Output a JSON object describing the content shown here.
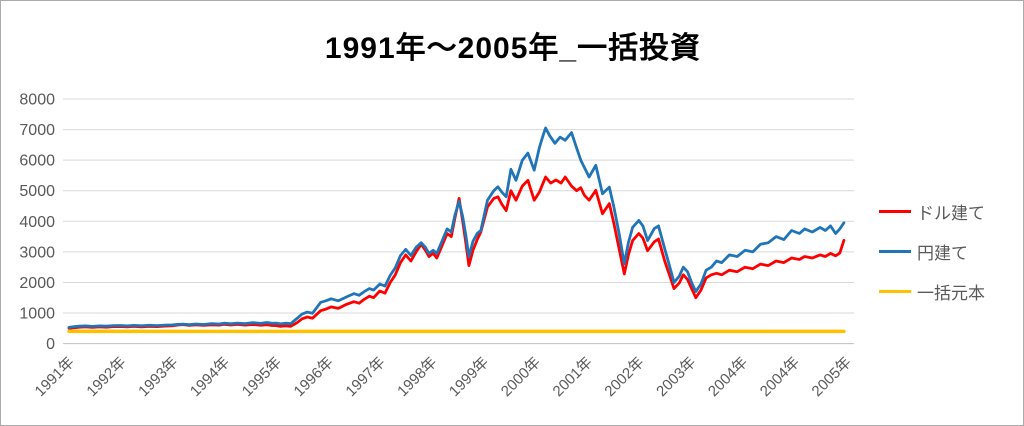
{
  "chart_data": {
    "type": "line",
    "title": "1991年～2005年_一括投資",
    "xlabel": "",
    "ylabel": "",
    "ylim": [
      0,
      8000
    ],
    "y_ticks": [
      0,
      1000,
      2000,
      3000,
      4000,
      5000,
      6000,
      7000,
      8000
    ],
    "x_tick_labels": [
      "1991年",
      "1992年",
      "1993年",
      "1994年",
      "1995年",
      "1996年",
      "1997年",
      "1998年",
      "1999年",
      "2000年",
      "2001年",
      "2002年",
      "2003年",
      "2004年",
      "2004年",
      "2005年"
    ],
    "grid": true,
    "gridline_color": "#d9d9d9",
    "axis_line_color": "#bfbfbf",
    "tick_label_color": "#595959",
    "legend_position": "right",
    "series": [
      {
        "name": "ドル建て",
        "color": "#FF0000",
        "points": [
          [
            0,
            500
          ],
          [
            0.1,
            520
          ],
          [
            0.2,
            535
          ],
          [
            0.32,
            545
          ],
          [
            0.45,
            530
          ],
          [
            0.6,
            548
          ],
          [
            0.72,
            538
          ],
          [
            0.85,
            555
          ],
          [
            1.0,
            560
          ],
          [
            1.12,
            545
          ],
          [
            1.25,
            562
          ],
          [
            1.4,
            550
          ],
          [
            1.55,
            566
          ],
          [
            1.7,
            556
          ],
          [
            1.85,
            572
          ],
          [
            2.0,
            582
          ],
          [
            2.1,
            608
          ],
          [
            2.2,
            622
          ],
          [
            2.32,
            596
          ],
          [
            2.45,
            612
          ],
          [
            2.6,
            596
          ],
          [
            2.75,
            616
          ],
          [
            2.9,
            606
          ],
          [
            3.0,
            630
          ],
          [
            3.12,
            608
          ],
          [
            3.25,
            630
          ],
          [
            3.4,
            606
          ],
          [
            3.55,
            626
          ],
          [
            3.7,
            602
          ],
          [
            3.82,
            618
          ],
          [
            3.92,
            592
          ],
          [
            4.0,
            590
          ],
          [
            4.08,
            562
          ],
          [
            4.18,
            582
          ],
          [
            4.28,
            566
          ],
          [
            4.4,
            680
          ],
          [
            4.5,
            810
          ],
          [
            4.6,
            870
          ],
          [
            4.7,
            830
          ],
          [
            4.86,
            1075
          ],
          [
            4.96,
            1130
          ],
          [
            5.06,
            1200
          ],
          [
            5.2,
            1150
          ],
          [
            5.35,
            1280
          ],
          [
            5.5,
            1370
          ],
          [
            5.6,
            1320
          ],
          [
            5.7,
            1450
          ],
          [
            5.8,
            1550
          ],
          [
            5.88,
            1500
          ],
          [
            6.0,
            1720
          ],
          [
            6.1,
            1650
          ],
          [
            6.2,
            2000
          ],
          [
            6.3,
            2250
          ],
          [
            6.4,
            2650
          ],
          [
            6.5,
            2900
          ],
          [
            6.6,
            2700
          ],
          [
            6.7,
            3000
          ],
          [
            6.8,
            3250
          ],
          [
            6.88,
            3050
          ],
          [
            6.95,
            2850
          ],
          [
            7.03,
            2950
          ],
          [
            7.1,
            2800
          ],
          [
            7.2,
            3200
          ],
          [
            7.3,
            3600
          ],
          [
            7.38,
            3500
          ],
          [
            7.45,
            4100
          ],
          [
            7.53,
            4750
          ],
          [
            7.6,
            4000
          ],
          [
            7.66,
            3300
          ],
          [
            7.72,
            2550
          ],
          [
            7.8,
            3050
          ],
          [
            7.88,
            3400
          ],
          [
            7.95,
            3650
          ],
          [
            8.08,
            4470
          ],
          [
            8.2,
            4750
          ],
          [
            8.28,
            4800
          ],
          [
            8.36,
            4550
          ],
          [
            8.44,
            4350
          ],
          [
            8.53,
            5000
          ],
          [
            8.63,
            4690
          ],
          [
            8.75,
            5150
          ],
          [
            8.86,
            5340
          ],
          [
            8.98,
            4690
          ],
          [
            9.08,
            4950
          ],
          [
            9.2,
            5450
          ],
          [
            9.3,
            5250
          ],
          [
            9.4,
            5350
          ],
          [
            9.5,
            5250
          ],
          [
            9.58,
            5450
          ],
          [
            9.7,
            5150
          ],
          [
            9.8,
            5000
          ],
          [
            9.88,
            5100
          ],
          [
            9.95,
            4850
          ],
          [
            10.04,
            4690
          ],
          [
            10.17,
            5010
          ],
          [
            10.3,
            4250
          ],
          [
            10.43,
            4580
          ],
          [
            10.52,
            3930
          ],
          [
            10.62,
            3100
          ],
          [
            10.72,
            2280
          ],
          [
            10.8,
            2900
          ],
          [
            10.88,
            3370
          ],
          [
            11.0,
            3600
          ],
          [
            11.08,
            3450
          ],
          [
            11.17,
            3040
          ],
          [
            11.3,
            3330
          ],
          [
            11.38,
            3420
          ],
          [
            11.5,
            2700
          ],
          [
            11.6,
            2200
          ],
          [
            11.68,
            1800
          ],
          [
            11.78,
            1980
          ],
          [
            11.86,
            2250
          ],
          [
            11.94,
            2100
          ],
          [
            12.02,
            1800
          ],
          [
            12.1,
            1500
          ],
          [
            12.2,
            1750
          ],
          [
            12.3,
            2150
          ],
          [
            12.4,
            2250
          ],
          [
            12.5,
            2300
          ],
          [
            12.6,
            2250
          ],
          [
            12.75,
            2400
          ],
          [
            12.9,
            2350
          ],
          [
            13.05,
            2500
          ],
          [
            13.2,
            2450
          ],
          [
            13.35,
            2600
          ],
          [
            13.5,
            2550
          ],
          [
            13.65,
            2700
          ],
          [
            13.8,
            2650
          ],
          [
            13.95,
            2800
          ],
          [
            14.1,
            2750
          ],
          [
            14.2,
            2850
          ],
          [
            14.35,
            2800
          ],
          [
            14.5,
            2900
          ],
          [
            14.6,
            2850
          ],
          [
            14.7,
            2950
          ],
          [
            14.8,
            2870
          ],
          [
            14.88,
            2960
          ],
          [
            14.96,
            3380
          ]
        ]
      },
      {
        "name": "円建て",
        "color": "#2074B8",
        "points": [
          [
            0,
            530
          ],
          [
            0.1,
            555
          ],
          [
            0.2,
            568
          ],
          [
            0.32,
            578
          ],
          [
            0.45,
            562
          ],
          [
            0.6,
            580
          ],
          [
            0.72,
            570
          ],
          [
            0.85,
            588
          ],
          [
            1.0,
            592
          ],
          [
            1.12,
            578
          ],
          [
            1.25,
            594
          ],
          [
            1.4,
            582
          ],
          [
            1.55,
            598
          ],
          [
            1.7,
            588
          ],
          [
            1.85,
            604
          ],
          [
            2.0,
            612
          ],
          [
            2.1,
            628
          ],
          [
            2.2,
            638
          ],
          [
            2.32,
            618
          ],
          [
            2.45,
            642
          ],
          [
            2.6,
            626
          ],
          [
            2.75,
            652
          ],
          [
            2.9,
            642
          ],
          [
            3.0,
            668
          ],
          [
            3.12,
            646
          ],
          [
            3.25,
            672
          ],
          [
            3.4,
            650
          ],
          [
            3.55,
            685
          ],
          [
            3.7,
            660
          ],
          [
            3.82,
            690
          ],
          [
            3.92,
            665
          ],
          [
            4.0,
            672
          ],
          [
            4.08,
            645
          ],
          [
            4.18,
            668
          ],
          [
            4.28,
            650
          ],
          [
            4.4,
            820
          ],
          [
            4.5,
            965
          ],
          [
            4.6,
            1030
          ],
          [
            4.7,
            990
          ],
          [
            4.86,
            1350
          ],
          [
            4.96,
            1400
          ],
          [
            5.06,
            1465
          ],
          [
            5.2,
            1400
          ],
          [
            5.35,
            1520
          ],
          [
            5.5,
            1635
          ],
          [
            5.6,
            1580
          ],
          [
            5.7,
            1700
          ],
          [
            5.8,
            1800
          ],
          [
            5.88,
            1750
          ],
          [
            6.0,
            1950
          ],
          [
            6.1,
            1880
          ],
          [
            6.2,
            2230
          ],
          [
            6.3,
            2480
          ],
          [
            6.4,
            2880
          ],
          [
            6.5,
            3080
          ],
          [
            6.6,
            2880
          ],
          [
            6.7,
            3150
          ],
          [
            6.8,
            3300
          ],
          [
            6.88,
            3150
          ],
          [
            6.95,
            2950
          ],
          [
            7.03,
            3050
          ],
          [
            7.1,
            2950
          ],
          [
            7.2,
            3350
          ],
          [
            7.3,
            3750
          ],
          [
            7.38,
            3650
          ],
          [
            7.45,
            4200
          ],
          [
            7.53,
            4650
          ],
          [
            7.6,
            4150
          ],
          [
            7.66,
            3550
          ],
          [
            7.72,
            2850
          ],
          [
            7.8,
            3350
          ],
          [
            7.88,
            3600
          ],
          [
            7.95,
            3700
          ],
          [
            8.08,
            4690
          ],
          [
            8.2,
            5000
          ],
          [
            8.28,
            5130
          ],
          [
            8.36,
            4950
          ],
          [
            8.44,
            4800
          ],
          [
            8.53,
            5700
          ],
          [
            8.63,
            5340
          ],
          [
            8.75,
            6000
          ],
          [
            8.86,
            6230
          ],
          [
            8.98,
            5670
          ],
          [
            9.08,
            6400
          ],
          [
            9.15,
            6800
          ],
          [
            9.2,
            7050
          ],
          [
            9.28,
            6800
          ],
          [
            9.38,
            6550
          ],
          [
            9.48,
            6750
          ],
          [
            9.58,
            6650
          ],
          [
            9.7,
            6900
          ],
          [
            9.8,
            6400
          ],
          [
            9.88,
            6000
          ],
          [
            10.04,
            5450
          ],
          [
            10.17,
            5830
          ],
          [
            10.3,
            4900
          ],
          [
            10.43,
            5120
          ],
          [
            10.52,
            4460
          ],
          [
            10.62,
            3600
          ],
          [
            10.72,
            2610
          ],
          [
            10.8,
            3300
          ],
          [
            10.88,
            3800
          ],
          [
            11.0,
            4030
          ],
          [
            11.08,
            3850
          ],
          [
            11.17,
            3370
          ],
          [
            11.3,
            3760
          ],
          [
            11.38,
            3850
          ],
          [
            11.5,
            3100
          ],
          [
            11.6,
            2500
          ],
          [
            11.68,
            2000
          ],
          [
            11.78,
            2200
          ],
          [
            11.86,
            2500
          ],
          [
            11.94,
            2350
          ],
          [
            12.02,
            2000
          ],
          [
            12.1,
            1700
          ],
          [
            12.2,
            1950
          ],
          [
            12.3,
            2400
          ],
          [
            12.4,
            2500
          ],
          [
            12.5,
            2700
          ],
          [
            12.6,
            2650
          ],
          [
            12.75,
            2900
          ],
          [
            12.9,
            2850
          ],
          [
            13.05,
            3050
          ],
          [
            13.2,
            3000
          ],
          [
            13.35,
            3250
          ],
          [
            13.5,
            3300
          ],
          [
            13.65,
            3500
          ],
          [
            13.8,
            3400
          ],
          [
            13.95,
            3700
          ],
          [
            14.1,
            3600
          ],
          [
            14.2,
            3750
          ],
          [
            14.35,
            3650
          ],
          [
            14.5,
            3800
          ],
          [
            14.6,
            3700
          ],
          [
            14.7,
            3850
          ],
          [
            14.8,
            3600
          ],
          [
            14.88,
            3750
          ],
          [
            14.96,
            3950
          ]
        ]
      },
      {
        "name": "一括元本",
        "color": "#FFC000",
        "points": [
          [
            0,
            400
          ],
          [
            14.96,
            400
          ]
        ]
      }
    ]
  },
  "legend": {
    "items": [
      {
        "label": "ドル建て"
      },
      {
        "label": "円建て"
      },
      {
        "label": "一括元本"
      }
    ]
  }
}
